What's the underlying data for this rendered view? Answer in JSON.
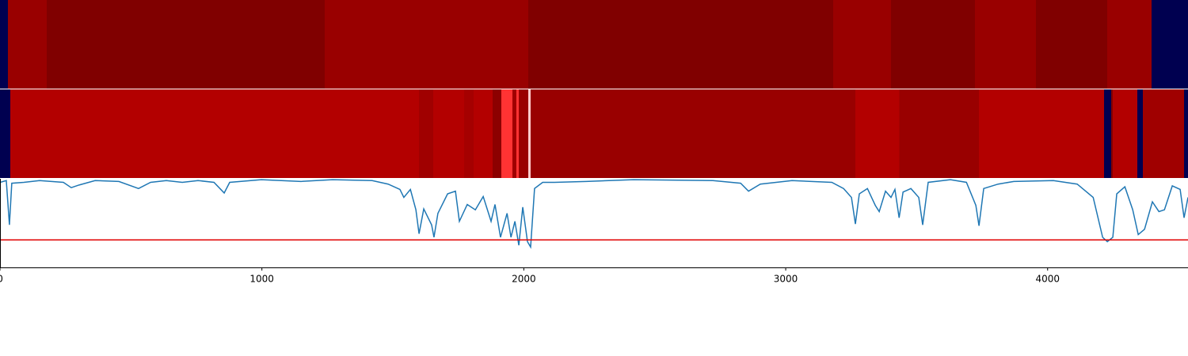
{
  "chart_data": [
    {
      "type": "segments",
      "xlim": [
        0,
        4536
      ],
      "edges": [
        0,
        30,
        178,
        1240,
        2017,
        3181,
        3402,
        3723,
        3956,
        4228,
        4397,
        4536
      ],
      "colors": [
        "#000050",
        "#990000",
        "#800000",
        "#990000",
        "#800000",
        "#990000",
        "#800000",
        "#990000",
        "#800000",
        "#990000",
        "#000050"
      ]
    },
    {
      "type": "segments",
      "xlim": [
        0,
        4536
      ],
      "edges": [
        0,
        39,
        1600,
        1654,
        1772,
        1808,
        1881,
        1914,
        1957,
        1972,
        1981,
        2017,
        2026,
        3266,
        3433,
        3738,
        4216,
        4243,
        4249,
        4343,
        4364,
        4521,
        4536
      ],
      "colors": [
        "#000050",
        "#b30000",
        "#a00000",
        "#b30000",
        "#a50000",
        "#b30000",
        "#8c0000",
        "#ff3333",
        "#a00000",
        "#ff3333",
        "#990000",
        "#ffcccc",
        "#990000",
        "#b30000",
        "#990000",
        "#b30000",
        "#000050",
        "#800000",
        "#b30000",
        "#000050",
        "#a00000",
        "#000050"
      ]
    },
    {
      "type": "line",
      "xlim": [
        0,
        4536
      ],
      "ylim": [
        0,
        1
      ],
      "xticks": [
        0,
        1000,
        2000,
        3000,
        4000
      ],
      "color": "#1f77b4",
      "threshold": {
        "value": 0.31,
        "color": "#e00000"
      },
      "x": [
        0,
        24,
        36,
        45,
        91,
        151,
        242,
        272,
        302,
        363,
        454,
        529,
        575,
        635,
        696,
        756,
        817,
        856,
        877,
        998,
        1149,
        1270,
        1421,
        1482,
        1527,
        1542,
        1567,
        1588,
        1600,
        1618,
        1648,
        1657,
        1672,
        1709,
        1739,
        1754,
        1784,
        1815,
        1845,
        1875,
        1890,
        1911,
        1936,
        1951,
        1966,
        1981,
        1996,
        2014,
        2026,
        2041,
        2072,
        2117,
        2238,
        2419,
        2722,
        2828,
        2858,
        2903,
        3024,
        3176,
        3221,
        3251,
        3266,
        3281,
        3312,
        3342,
        3357,
        3381,
        3402,
        3417,
        3433,
        3448,
        3478,
        3508,
        3523,
        3544,
        3629,
        3690,
        3726,
        3738,
        3756,
        3811,
        3871,
        4022,
        4113,
        4174,
        4210,
        4228,
        4249,
        4264,
        4295,
        4325,
        4346,
        4370,
        4400,
        4425,
        4446,
        4476,
        4506,
        4521,
        4536
      ],
      "values": [
        0.96,
        0.98,
        0.48,
        0.95,
        0.96,
        0.98,
        0.96,
        0.9,
        0.93,
        0.98,
        0.97,
        0.89,
        0.96,
        0.98,
        0.96,
        0.98,
        0.96,
        0.84,
        0.96,
        0.99,
        0.97,
        0.99,
        0.98,
        0.94,
        0.88,
        0.79,
        0.88,
        0.65,
        0.38,
        0.66,
        0.48,
        0.34,
        0.61,
        0.83,
        0.86,
        0.52,
        0.71,
        0.65,
        0.8,
        0.52,
        0.71,
        0.34,
        0.61,
        0.34,
        0.52,
        0.25,
        0.68,
        0.29,
        0.23,
        0.89,
        0.96,
        0.96,
        0.97,
        0.99,
        0.98,
        0.95,
        0.86,
        0.94,
        0.98,
        0.96,
        0.89,
        0.79,
        0.49,
        0.83,
        0.89,
        0.7,
        0.63,
        0.86,
        0.79,
        0.88,
        0.56,
        0.85,
        0.89,
        0.79,
        0.48,
        0.96,
        0.99,
        0.96,
        0.7,
        0.47,
        0.89,
        0.94,
        0.97,
        0.98,
        0.94,
        0.79,
        0.34,
        0.29,
        0.34,
        0.83,
        0.91,
        0.65,
        0.37,
        0.43,
        0.74,
        0.63,
        0.65,
        0.92,
        0.88,
        0.56,
        0.79
      ]
    }
  ]
}
